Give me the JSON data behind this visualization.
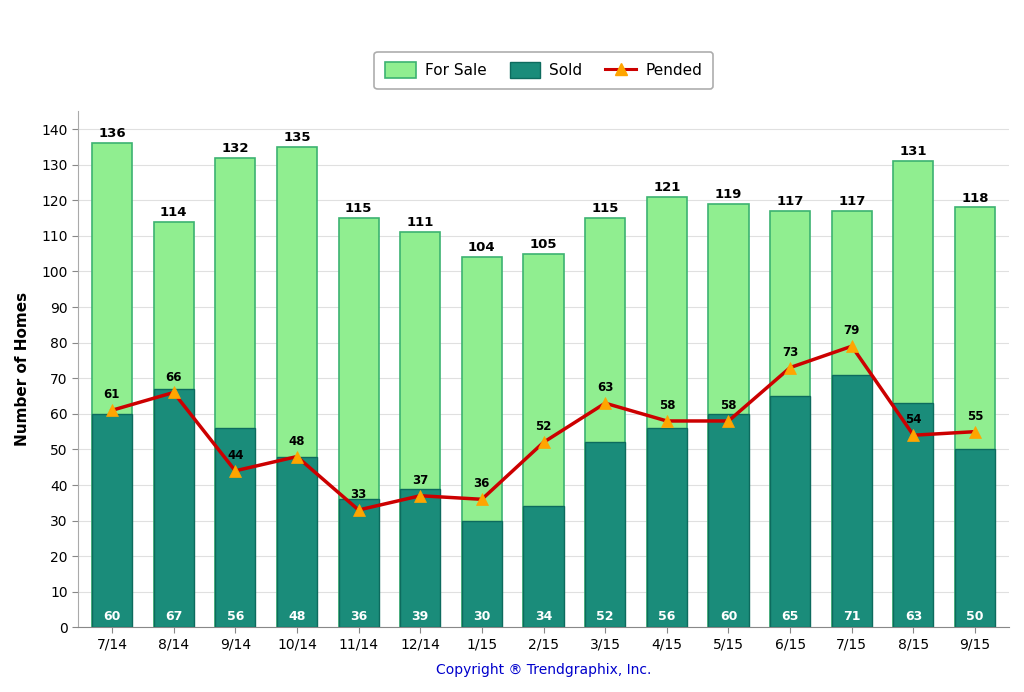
{
  "categories": [
    "7/14",
    "8/14",
    "9/14",
    "10/14",
    "11/14",
    "12/14",
    "1/15",
    "2/15",
    "3/15",
    "4/15",
    "5/15",
    "6/15",
    "7/15",
    "8/15",
    "9/15"
  ],
  "for_sale": [
    136,
    114,
    132,
    135,
    115,
    111,
    104,
    105,
    115,
    121,
    119,
    117,
    117,
    131,
    118
  ],
  "sold": [
    60,
    67,
    56,
    48,
    36,
    39,
    30,
    34,
    52,
    56,
    60,
    65,
    71,
    63,
    50
  ],
  "pended": [
    61,
    66,
    44,
    48,
    33,
    37,
    36,
    52,
    63,
    58,
    58,
    73,
    79,
    54,
    55
  ],
  "for_sale_color": "#90EE90",
  "for_sale_edge_color": "#3CB371",
  "sold_color": "#1a8c7a",
  "sold_edge_color": "#0d6b5e",
  "pended_line_color": "#CC0000",
  "pended_marker_color": "#FFA500",
  "ylabel": "Number of Homes",
  "xlabel": "Copyright ® Trendgraphix, Inc.",
  "ylim": [
    0,
    145
  ],
  "yticks": [
    0,
    10,
    20,
    30,
    40,
    50,
    60,
    70,
    80,
    90,
    100,
    110,
    120,
    130,
    140
  ],
  "legend_for_sale": "For Sale",
  "legend_sold": "Sold",
  "legend_pended": "Pended",
  "bar_width": 0.65,
  "background_color": "#ffffff",
  "plot_bg_color": "#ffffff",
  "grid_color": "#e0e0e0"
}
